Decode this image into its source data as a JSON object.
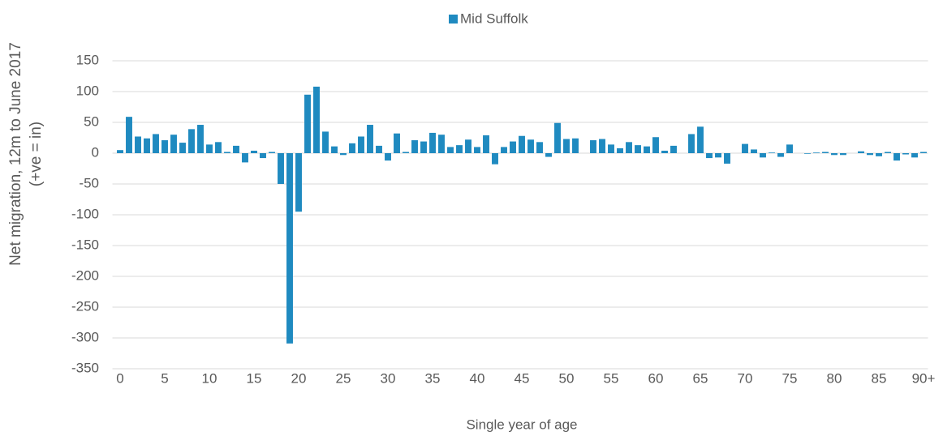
{
  "chart_data": {
    "type": "bar",
    "legend": [
      "Mid Suffolk"
    ],
    "xlabel": "Single year of age",
    "ylabel": [
      "Net migration, 12m to June 2017",
      "(+ve = in)"
    ],
    "categories": [
      "0",
      null,
      null,
      null,
      null,
      "5",
      null,
      null,
      null,
      null,
      "10",
      null,
      null,
      null,
      null,
      "15",
      null,
      null,
      null,
      null,
      "20",
      null,
      null,
      null,
      null,
      "25",
      null,
      null,
      null,
      null,
      "30",
      null,
      null,
      null,
      null,
      "35",
      null,
      null,
      null,
      null,
      "40",
      null,
      null,
      null,
      null,
      "45",
      null,
      null,
      null,
      null,
      "50",
      null,
      null,
      null,
      null,
      "55",
      null,
      null,
      null,
      null,
      "60",
      null,
      null,
      null,
      null,
      "65",
      null,
      null,
      null,
      null,
      "70",
      null,
      null,
      null,
      null,
      "75",
      null,
      null,
      null,
      null,
      "80",
      null,
      null,
      null,
      null,
      "85",
      null,
      null,
      null,
      null,
      "90+"
    ],
    "values": [
      5,
      59,
      27,
      24,
      31,
      21,
      30,
      17,
      39,
      46,
      14,
      18,
      2,
      12,
      -15,
      4,
      -8,
      2,
      -50,
      -309,
      -95,
      95,
      108,
      35,
      11,
      -3,
      16,
      27,
      46,
      12,
      -12,
      32,
      2,
      21,
      19,
      33,
      30,
      10,
      13,
      22,
      10,
      29,
      -18,
      10,
      19,
      28,
      22,
      18,
      -6,
      49,
      23,
      24,
      0,
      21,
      23,
      14,
      8,
      18,
      13,
      11,
      26,
      4,
      12,
      0,
      31,
      43,
      -8,
      -7,
      -17,
      0,
      15,
      6,
      -7,
      1,
      -6,
      14,
      0,
      -1,
      1,
      2,
      -3,
      -3,
      0,
      3,
      -3,
      -5,
      2,
      -12,
      -2,
      -7,
      2
    ],
    "color": "#1f8ac0",
    "ylim": [
      -350,
      150
    ],
    "yticks": [
      150,
      100,
      50,
      0,
      -50,
      -100,
      -150,
      -200,
      -250,
      -300,
      -350
    ],
    "grid": true
  }
}
